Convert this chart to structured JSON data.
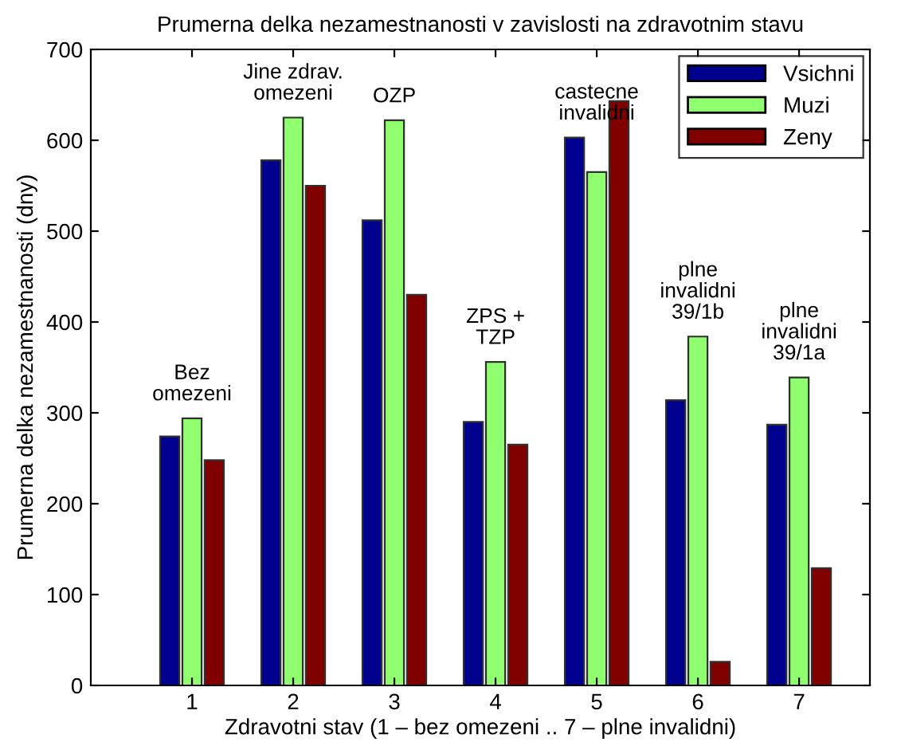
{
  "chart_data": {
    "type": "bar",
    "title": "Prumerna delka nezamestnanosti v zavislosti na zdravotnim stavu",
    "xlabel": "Zdravotni stav (1 – bez omezeni .. 7 – plne invalidni)",
    "ylabel": "Prumerna delka nezamestnanosti (dny)",
    "categories": [
      "1",
      "2",
      "3",
      "4",
      "5",
      "6",
      "7"
    ],
    "series": [
      {
        "name": "Vsichni",
        "color": "#00008f",
        "values": [
          274,
          578,
          512,
          290,
          603,
          314,
          287
        ]
      },
      {
        "name": "Muzi",
        "color": "#8fff6f",
        "values": [
          294,
          625,
          622,
          356,
          565,
          384,
          339
        ]
      },
      {
        "name": "Zeny",
        "color": "#800000",
        "values": [
          248,
          550,
          430,
          265,
          643,
          26,
          129
        ]
      }
    ],
    "ylim": [
      0,
      700
    ],
    "yticks": [
      0,
      100,
      200,
      300,
      400,
      500,
      600,
      700
    ],
    "annotations": [
      "Bez\nomezeni",
      "Jine zdrav.\nomezeni",
      "OZP",
      "ZPS +\nTZP",
      "castecne\ninvalidni",
      "plne\ninvalidni\n39/1b",
      "plne\ninvalidni\n39/1a"
    ],
    "legend": "top right",
    "grid": false
  }
}
